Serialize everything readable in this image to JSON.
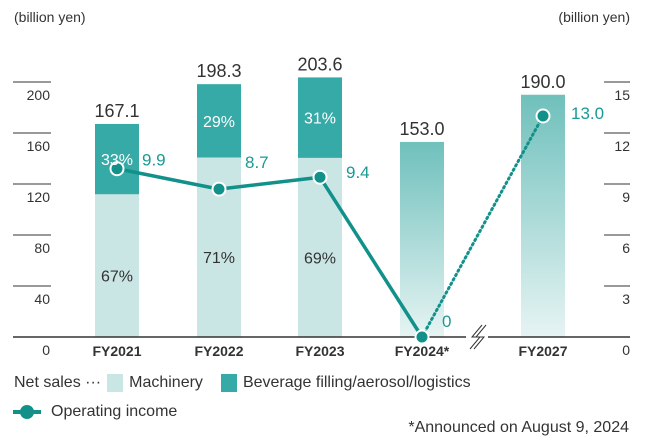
{
  "colors": {
    "machinery": "#c9e5e4",
    "beverage": "#35aaa6",
    "forecast_top": "#6fc0bc",
    "forecast_bottom": "#e6f4f3",
    "income_line": "#12918a",
    "income_label": "#1a9a93",
    "axis": "#333333"
  },
  "chart_data": {
    "type": "bar+line",
    "left_axis": {
      "label": "(billion yen)",
      "ylim": [
        0,
        200
      ],
      "ticks": [
        "0",
        "40",
        "80",
        "120",
        "160",
        "200"
      ]
    },
    "right_axis": {
      "label": "(billion yen)",
      "ylim": [
        0,
        15
      ],
      "ticks": [
        "0",
        "3",
        "6",
        "9",
        "12",
        "15"
      ]
    },
    "categories": [
      "FY2021",
      "FY2022",
      "FY2023",
      "FY2024*",
      "FY2027"
    ],
    "net_sales": {
      "totals": [
        167.1,
        198.3,
        203.6,
        153.0,
        190.0
      ],
      "total_labels": [
        "167.1",
        "198.3",
        "203.6",
        "153.0",
        "190.0"
      ],
      "machinery_share": [
        67,
        71,
        69,
        null,
        null
      ],
      "machinery_labels": [
        "67%",
        "71%",
        "69%",
        "",
        ""
      ],
      "beverage_share": [
        33,
        29,
        31,
        null,
        null
      ],
      "beverage_labels": [
        "33%",
        "29%",
        "31%",
        "",
        ""
      ],
      "forecast": [
        false,
        false,
        false,
        true,
        true
      ]
    },
    "operating_income": {
      "values": [
        9.9,
        8.7,
        9.4,
        0,
        13.0
      ],
      "labels": [
        "9.9",
        "8.7",
        "9.4",
        "0",
        "13.0"
      ],
      "dotted_from_index": 3
    },
    "axis_break_between": [
      "FY2024*",
      "FY2027"
    ]
  },
  "legend": {
    "net_sales_prefix": "Net sales ···",
    "machinery": "Machinery",
    "beverage": "Beverage filling/aerosol/logistics",
    "operating_income": "Operating income"
  },
  "footnote": "*Announced on August 9, 2024"
}
